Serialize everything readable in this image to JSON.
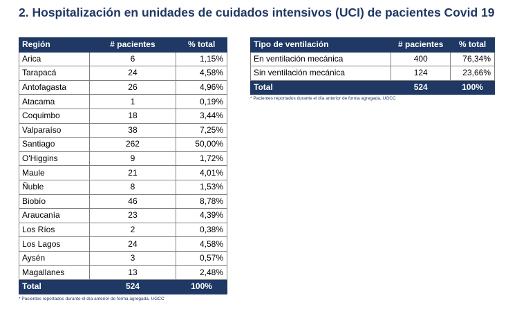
{
  "title": "2. Hospitalización en unidades de cuidados intensivos (UCI) de pacientes Covid 19",
  "region_table": {
    "headers": [
      "Región",
      "# pacientes",
      "% total"
    ],
    "rows": [
      [
        "Arica",
        "6",
        "1,15%"
      ],
      [
        "Tarapacá",
        "24",
        "4,58%"
      ],
      [
        "Antofagasta",
        "26",
        "4,96%"
      ],
      [
        "Atacama",
        "1",
        "0,19%"
      ],
      [
        "Coquimbo",
        "18",
        "3,44%"
      ],
      [
        "Valparaíso",
        "38",
        "7,25%"
      ],
      [
        "Santiago",
        "262",
        "50,00%"
      ],
      [
        "O'Higgins",
        "9",
        "1,72%"
      ],
      [
        "Maule",
        "21",
        "4,01%"
      ],
      [
        "Ñuble",
        "8",
        "1,53%"
      ],
      [
        "Biobío",
        "46",
        "8,78%"
      ],
      [
        "Araucanía",
        "23",
        "4,39%"
      ],
      [
        "Los Ríos",
        "2",
        "0,38%"
      ],
      [
        "Los Lagos",
        "24",
        "4,58%"
      ],
      [
        "Aysén",
        "3",
        "0,57%"
      ],
      [
        "Magallanes",
        "13",
        "2,48%"
      ]
    ],
    "total": [
      "Total",
      "524",
      "100%"
    ],
    "note": "* Pacientes reportados durante el día anterior de forma agregada, UGCC"
  },
  "ventilation_table": {
    "headers": [
      "Tipo de ventilación",
      "# pacientes",
      "% total"
    ],
    "rows": [
      [
        "En ventilación mecánica",
        "400",
        "76,34%"
      ],
      [
        "Sin ventilación mecánica",
        "124",
        "23,66%"
      ]
    ],
    "total": [
      "Total",
      "524",
      "100%"
    ],
    "note": "* Pacientes reportados durante el día anterior de forma agregada, UGCC"
  },
  "colors": {
    "header_bg": "#1f3864",
    "header_text": "#ffffff",
    "title_text": "#1f3864",
    "border": "#7f7f7f"
  }
}
